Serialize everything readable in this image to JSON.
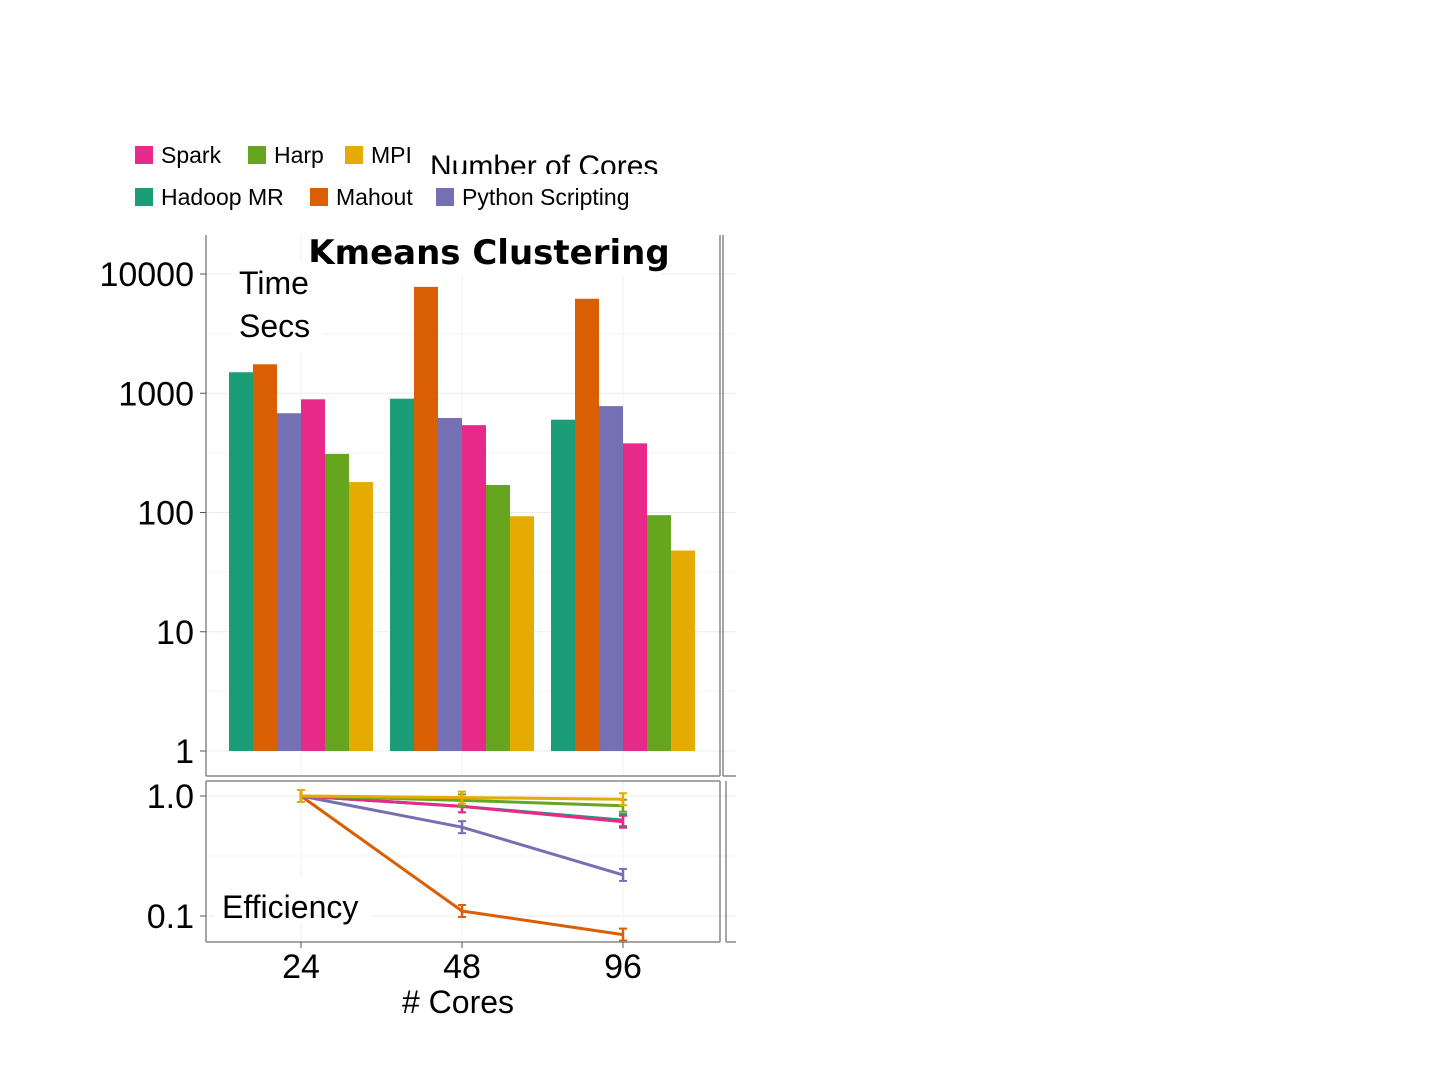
{
  "chart_data": {
    "type": "bar",
    "title": "Kmeans Clustering",
    "partial_title": "Number of Cores",
    "xlabel": "# Cores",
    "categories": [
      "24",
      "48",
      "96"
    ],
    "legend": {
      "placement": "top-left",
      "rows": [
        [
          "Spark",
          "Harp",
          "MPI"
        ],
        [
          "Hadoop MR",
          "Mahout",
          "Python Scripting"
        ]
      ]
    },
    "colors": {
      "Hadoop MR": "#1b9e77",
      "Mahout": "#d95f02",
      "Python Scripting": "#7570b3",
      "Spark": "#e7298a",
      "Harp": "#66a61e",
      "MPI": "#e6ab02"
    },
    "panels": [
      {
        "label_lines": [
          "Time",
          "Secs"
        ],
        "type": "bar",
        "yscale": "log10",
        "ylim": [
          1,
          20000
        ],
        "yticks": [
          "1",
          "10",
          "100",
          "1000",
          "10000"
        ],
        "grid": true,
        "series": [
          {
            "name": "Hadoop MR",
            "values": [
              1500,
              900,
              600
            ]
          },
          {
            "name": "Mahout",
            "values": [
              1750,
              7800,
              6200
            ]
          },
          {
            "name": "Python Scripting",
            "values": [
              680,
              620,
              780
            ]
          },
          {
            "name": "Spark",
            "values": [
              890,
              540,
              380
            ]
          },
          {
            "name": "Harp",
            "values": [
              310,
              170,
              95
            ]
          },
          {
            "name": "MPI",
            "values": [
              180,
              93,
              48
            ]
          }
        ]
      },
      {
        "label": "Efficiency",
        "type": "line",
        "yscale": "log10",
        "ylim": [
          0.07,
          1.1
        ],
        "yticks": [
          "0.1",
          "1.0"
        ],
        "grid": true,
        "series": [
          {
            "name": "Hadoop MR",
            "values": [
              1.0,
              0.82,
              0.63
            ]
          },
          {
            "name": "Mahout",
            "values": [
              1.0,
              0.11,
              0.07
            ]
          },
          {
            "name": "Python Scripting",
            "values": [
              1.0,
              0.55,
              0.22
            ]
          },
          {
            "name": "Spark",
            "values": [
              1.0,
              0.82,
              0.61
            ]
          },
          {
            "name": "Harp",
            "values": [
              1.0,
              0.92,
              0.83
            ]
          },
          {
            "name": "MPI",
            "values": [
              1.0,
              0.97,
              0.94
            ]
          }
        ]
      }
    ]
  }
}
